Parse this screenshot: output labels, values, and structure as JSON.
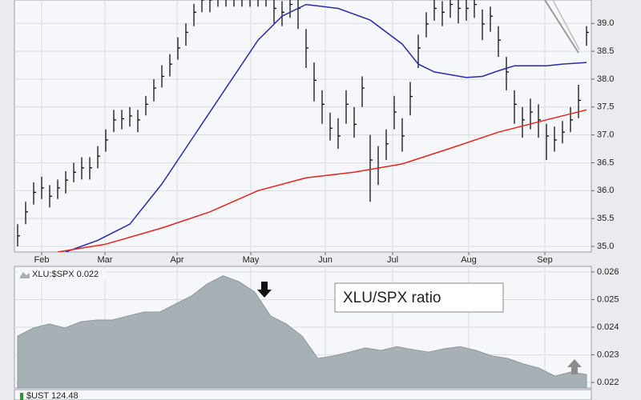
{
  "chart_data": [
    {
      "type": "ohlc",
      "xticks": [
        {
          "value": 3,
          "label": "Feb"
        },
        {
          "value": 10.9,
          "label": "Mar"
        },
        {
          "value": 19.9,
          "label": "Apr"
        },
        {
          "value": 29.1,
          "label": "May"
        },
        {
          "value": 38.4,
          "label": "Jun"
        },
        {
          "value": 46.8,
          "label": "Jul"
        },
        {
          "value": 56.3,
          "label": "Aug"
        },
        {
          "value": 65.8,
          "label": "Sep"
        }
      ],
      "xlim": [
        -0.4,
        71.6
      ],
      "ylim": [
        34.9,
        39.42
      ],
      "yticks": [
        {
          "value": 35,
          "label": "35.0"
        },
        35.5,
        {
          "value": 36,
          "label": "36.0"
        },
        36.5,
        {
          "value": 37,
          "label": "37.0"
        },
        37.5,
        {
          "value": 38,
          "label": "38.0"
        },
        38.5,
        {
          "value": 39,
          "label": "39.0"
        }
      ],
      "grid": true,
      "color": "#111111",
      "high": [
        35.4,
        35.8,
        36.15,
        36.25,
        36.1,
        36.2,
        36.35,
        36.5,
        36.6,
        36.6,
        36.8,
        37.1,
        37.45,
        37.45,
        37.5,
        37.45,
        37.7,
        38.0,
        38.25,
        38.45,
        38.75,
        39.0,
        39.35,
        39.6,
        39.6,
        39.7,
        39.7,
        39.7,
        39.7,
        39.7,
        39.7,
        39.7,
        39.45,
        39.4,
        39.5,
        39.45,
        38.9,
        38.3,
        37.8,
        37.4,
        37.3,
        37.8,
        37.5,
        38.05,
        37.0,
        36.8,
        37.1,
        37.7,
        37.3,
        37.95,
        38.8,
        39.2,
        39.45,
        39.4,
        39.5,
        39.45,
        39.45,
        39.5,
        39.25,
        39.3,
        38.95,
        38.4,
        37.8,
        37.5,
        37.65,
        37.55,
        37.2,
        37.15,
        37.25,
        37.5,
        37.9,
        38.95
      ],
      "low": [
        35.0,
        35.4,
        35.75,
        35.85,
        35.7,
        35.85,
        35.95,
        36.15,
        36.2,
        36.2,
        36.4,
        36.7,
        37.05,
        37.1,
        37.15,
        37.05,
        37.35,
        37.6,
        37.85,
        38.05,
        38.35,
        38.6,
        38.95,
        39.2,
        39.2,
        39.3,
        39.3,
        39.3,
        39.3,
        39.3,
        39.3,
        39.3,
        39.0,
        38.95,
        39.1,
        38.9,
        38.2,
        37.6,
        37.2,
        36.9,
        36.75,
        37.2,
        36.95,
        37.5,
        35.8,
        36.1,
        36.55,
        37.1,
        36.7,
        37.35,
        38.2,
        38.75,
        39.05,
        38.95,
        39.1,
        39.0,
        39.05,
        39.1,
        38.7,
        38.85,
        38.4,
        37.8,
        37.2,
        36.95,
        37.1,
        36.95,
        36.55,
        36.7,
        36.85,
        37.05,
        37.3,
        38.6
      ],
      "close": [
        35.19,
        35.62,
        35.97,
        36.05,
        35.9,
        36.05,
        36.19,
        36.33,
        36.41,
        36.41,
        36.62,
        36.91,
        37.27,
        37.29,
        37.34,
        37.27,
        37.55,
        37.84,
        38.05,
        38.27,
        38.56,
        38.84,
        39.2,
        39.42,
        39.42,
        39.5,
        39.5,
        39.5,
        39.5,
        39.5,
        39.5,
        39.5,
        39.27,
        39.2,
        39.34,
        39.27,
        38.56,
        37.98,
        37.55,
        37.12,
        36.98,
        37.55,
        37.19,
        37.84,
        36.55,
        36.41,
        36.84,
        37.41,
        36.98,
        37.69,
        38.56,
        38.99,
        39.27,
        39.2,
        39.34,
        39.27,
        39.27,
        39.34,
        38.99,
        39.13,
        38.7,
        38.13,
        37.55,
        37.27,
        37.41,
        37.27,
        36.98,
        36.91,
        37.05,
        37.27,
        37.62,
        38.84
      ],
      "overlays": [
        {
          "color": "#2b2ba8",
          "x": [
            6,
            10,
            14,
            18,
            22,
            26,
            30,
            33,
            36,
            40,
            44,
            48,
            50,
            52,
            56,
            58,
            60,
            62,
            66,
            68,
            71
          ],
          "values": [
            34.9,
            35.11,
            35.4,
            36.12,
            36.98,
            37.84,
            38.7,
            39.13,
            39.34,
            39.27,
            39.06,
            38.63,
            38.27,
            38.13,
            38.03,
            38.05,
            38.15,
            38.24,
            38.24,
            38.27,
            38.3
          ]
        },
        {
          "color": "#e8231f",
          "x": [
            5,
            11,
            18,
            24,
            30,
            36,
            42,
            48,
            54,
            60,
            66,
            71
          ],
          "values": [
            34.9,
            35.04,
            35.33,
            35.62,
            36.0,
            36.23,
            36.33,
            36.48,
            36.76,
            37.05,
            37.27,
            37.45
          ]
        }
      ]
    },
    {
      "type": "area",
      "label": "XLU:$SPX  0.022",
      "annotation": "XLU/SPX ratio",
      "color": "#a7b0b5",
      "ylim": [
        0.0218,
        0.0262
      ],
      "yticks": [
        0.022,
        0.023,
        0.024,
        0.025,
        0.026
      ],
      "grid": true,
      "values": [
        0.02368,
        0.02397,
        0.02412,
        0.02397,
        0.0242,
        0.02426,
        0.02426,
        0.02441,
        0.02455,
        0.02455,
        0.02484,
        0.02513,
        0.02557,
        0.02586,
        0.02565,
        0.02528,
        0.02441,
        0.02412,
        0.02368,
        0.02287,
        0.02296,
        0.0231,
        0.02325,
        0.02316,
        0.0233,
        0.02319,
        0.0231,
        0.02322,
        0.0233,
        0.02316,
        0.02296,
        0.02287,
        0.02267,
        0.02252,
        0.02223,
        0.02238,
        0.02229
      ]
    },
    {
      "type": "bar",
      "label": "$UST  124.48"
    }
  ]
}
